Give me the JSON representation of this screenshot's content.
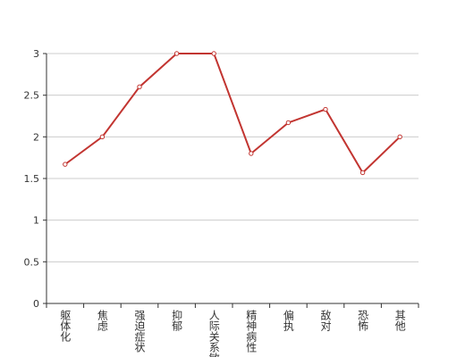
{
  "chart_data": {
    "type": "line",
    "categories": [
      "躯体化",
      "焦虑",
      "强迫症状",
      "抑郁",
      "人际关系敏感",
      "精神病性",
      "偏执",
      "敌对",
      "恐怖",
      "其他"
    ],
    "series": [
      {
        "color": "#c23531",
        "values": [
          1.67,
          2.0,
          2.6,
          3.0,
          3.0,
          1.8,
          2.17,
          2.33,
          1.57,
          2.0
        ]
      }
    ],
    "ylim": [
      0,
      3
    ],
    "yticks": [
      0,
      0.5,
      1,
      1.5,
      2,
      2.5,
      3
    ],
    "grid": true
  }
}
